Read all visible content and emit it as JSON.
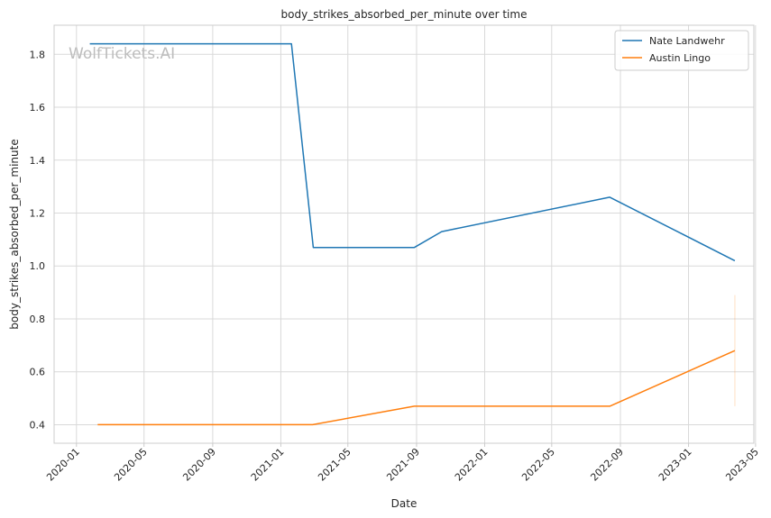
{
  "watermark": "WolfTickets.AI",
  "chart_data": {
    "type": "line",
    "title": "body_strikes_absorbed_per_minute over time",
    "xlabel": "Date",
    "ylabel": "body_strikes_absorbed_per_minute",
    "xlim": [
      "2019-11-22",
      "2023-04-28"
    ],
    "ylim": [
      0.33,
      1.91
    ],
    "x_ticks": [
      "2020-01",
      "2020-05",
      "2020-09",
      "2021-01",
      "2021-05",
      "2021-09",
      "2022-01",
      "2022-05",
      "2022-09",
      "2023-01",
      "2023-05"
    ],
    "y_ticks": [
      0.4,
      0.6,
      0.8,
      1.0,
      1.2,
      1.4,
      1.6,
      1.8
    ],
    "grid": true,
    "legend": "top-right",
    "series": [
      {
        "name": "Nate Landwehr",
        "color": "#1f77b4",
        "points": [
          {
            "x": "2020-01-25",
            "y": 1.84
          },
          {
            "x": "2021-01-20",
            "y": 1.84
          },
          {
            "x": "2021-02-28",
            "y": 1.07
          },
          {
            "x": "2021-08-28",
            "y": 1.07
          },
          {
            "x": "2021-10-16",
            "y": 1.13
          },
          {
            "x": "2022-08-13",
            "y": 1.26
          },
          {
            "x": "2023-03-25",
            "y": 1.02
          }
        ]
      },
      {
        "name": "Austin Lingo",
        "color": "#ff7f0e",
        "points": [
          {
            "x": "2020-02-08",
            "y": 0.4
          },
          {
            "x": "2021-02-27",
            "y": 0.4
          },
          {
            "x": "2021-08-28",
            "y": 0.47
          },
          {
            "x": "2022-08-13",
            "y": 0.47
          },
          {
            "x": "2023-03-25",
            "y": 0.68
          }
        ],
        "error_band": {
          "x": "2023-03-25",
          "low": 0.47,
          "high": 0.89
        }
      }
    ]
  }
}
